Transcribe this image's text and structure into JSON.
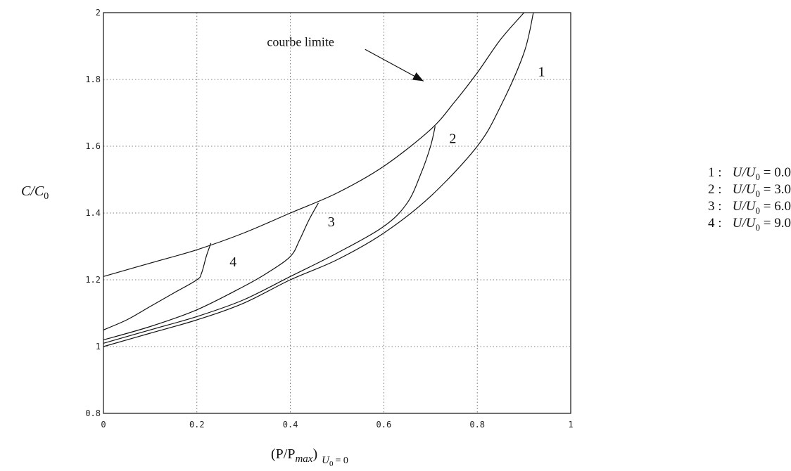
{
  "chart_data": {
    "type": "line",
    "xlabel": "(P/P_max)_{U_0 = 0}",
    "ylabel": "C/C_0",
    "xlim": [
      0,
      1
    ],
    "ylim": [
      0.8,
      2.0
    ],
    "grid": true,
    "x_ticks": [
      "0",
      "0.2",
      "0.4",
      "0.6",
      "0.8",
      "1"
    ],
    "y_ticks": [
      "0.8",
      "1",
      "1.2",
      "1.4",
      "1.6",
      "1.8",
      "2"
    ],
    "series": [
      {
        "name": "1",
        "x": [
          0,
          0.1,
          0.2,
          0.3,
          0.4,
          0.5,
          0.6,
          0.7,
          0.8,
          0.85,
          0.9,
          0.92
        ],
        "y": [
          1.0,
          1.04,
          1.08,
          1.13,
          1.2,
          1.26,
          1.34,
          1.45,
          1.6,
          1.72,
          1.88,
          2.0
        ]
      },
      {
        "name": "2",
        "x": [
          0,
          0.1,
          0.2,
          0.3,
          0.4,
          0.5,
          0.6,
          0.65,
          0.68,
          0.7,
          0.71
        ],
        "y": [
          1.01,
          1.05,
          1.09,
          1.14,
          1.21,
          1.28,
          1.36,
          1.43,
          1.52,
          1.6,
          1.66
        ]
      },
      {
        "name": "3",
        "x": [
          0,
          0.1,
          0.2,
          0.3,
          0.35,
          0.4,
          0.42,
          0.44,
          0.46
        ],
        "y": [
          1.02,
          1.06,
          1.11,
          1.18,
          1.22,
          1.27,
          1.32,
          1.38,
          1.43
        ]
      },
      {
        "name": "4",
        "x": [
          0,
          0.05,
          0.1,
          0.15,
          0.2,
          0.21,
          0.22,
          0.23
        ],
        "y": [
          1.05,
          1.08,
          1.12,
          1.16,
          1.2,
          1.22,
          1.27,
          1.31
        ]
      },
      {
        "name": "courbe limite",
        "x": [
          0,
          0.1,
          0.2,
          0.3,
          0.4,
          0.5,
          0.6,
          0.7,
          0.75,
          0.8,
          0.85,
          0.9
        ],
        "y": [
          1.21,
          1.25,
          1.29,
          1.34,
          1.4,
          1.46,
          1.54,
          1.65,
          1.73,
          1.82,
          1.92,
          2.0
        ]
      }
    ],
    "annotations": [
      {
        "text": "courbe limite",
        "x": 0.35,
        "y": 1.9
      },
      {
        "text": "1",
        "x": 0.93,
        "y": 1.81
      },
      {
        "text": "2",
        "x": 0.74,
        "y": 1.61
      },
      {
        "text": "3",
        "x": 0.48,
        "y": 1.36
      },
      {
        "text": "4",
        "x": 0.27,
        "y": 1.24
      }
    ]
  },
  "legend": [
    {
      "num": "1 :",
      "var": "U/U",
      "sub": "0",
      "value": "= 0.0"
    },
    {
      "num": "2 :",
      "var": "U/U",
      "sub": "0",
      "value": "= 3.0"
    },
    {
      "num": "3 :",
      "var": "U/U",
      "sub": "0",
      "value": "= 6.0"
    },
    {
      "num": "4 :",
      "var": "U/U",
      "sub": "0",
      "value": "= 9.0"
    }
  ],
  "axis_text": {
    "ylabel_main": "C/C",
    "ylabel_sub": "0",
    "xlabel_main": "(P/P",
    "xlabel_max": "max",
    "xlabel_close": ")",
    "xlabel_cond_u": "U",
    "xlabel_cond_sub": "0",
    "xlabel_cond_eq": "= 0"
  }
}
